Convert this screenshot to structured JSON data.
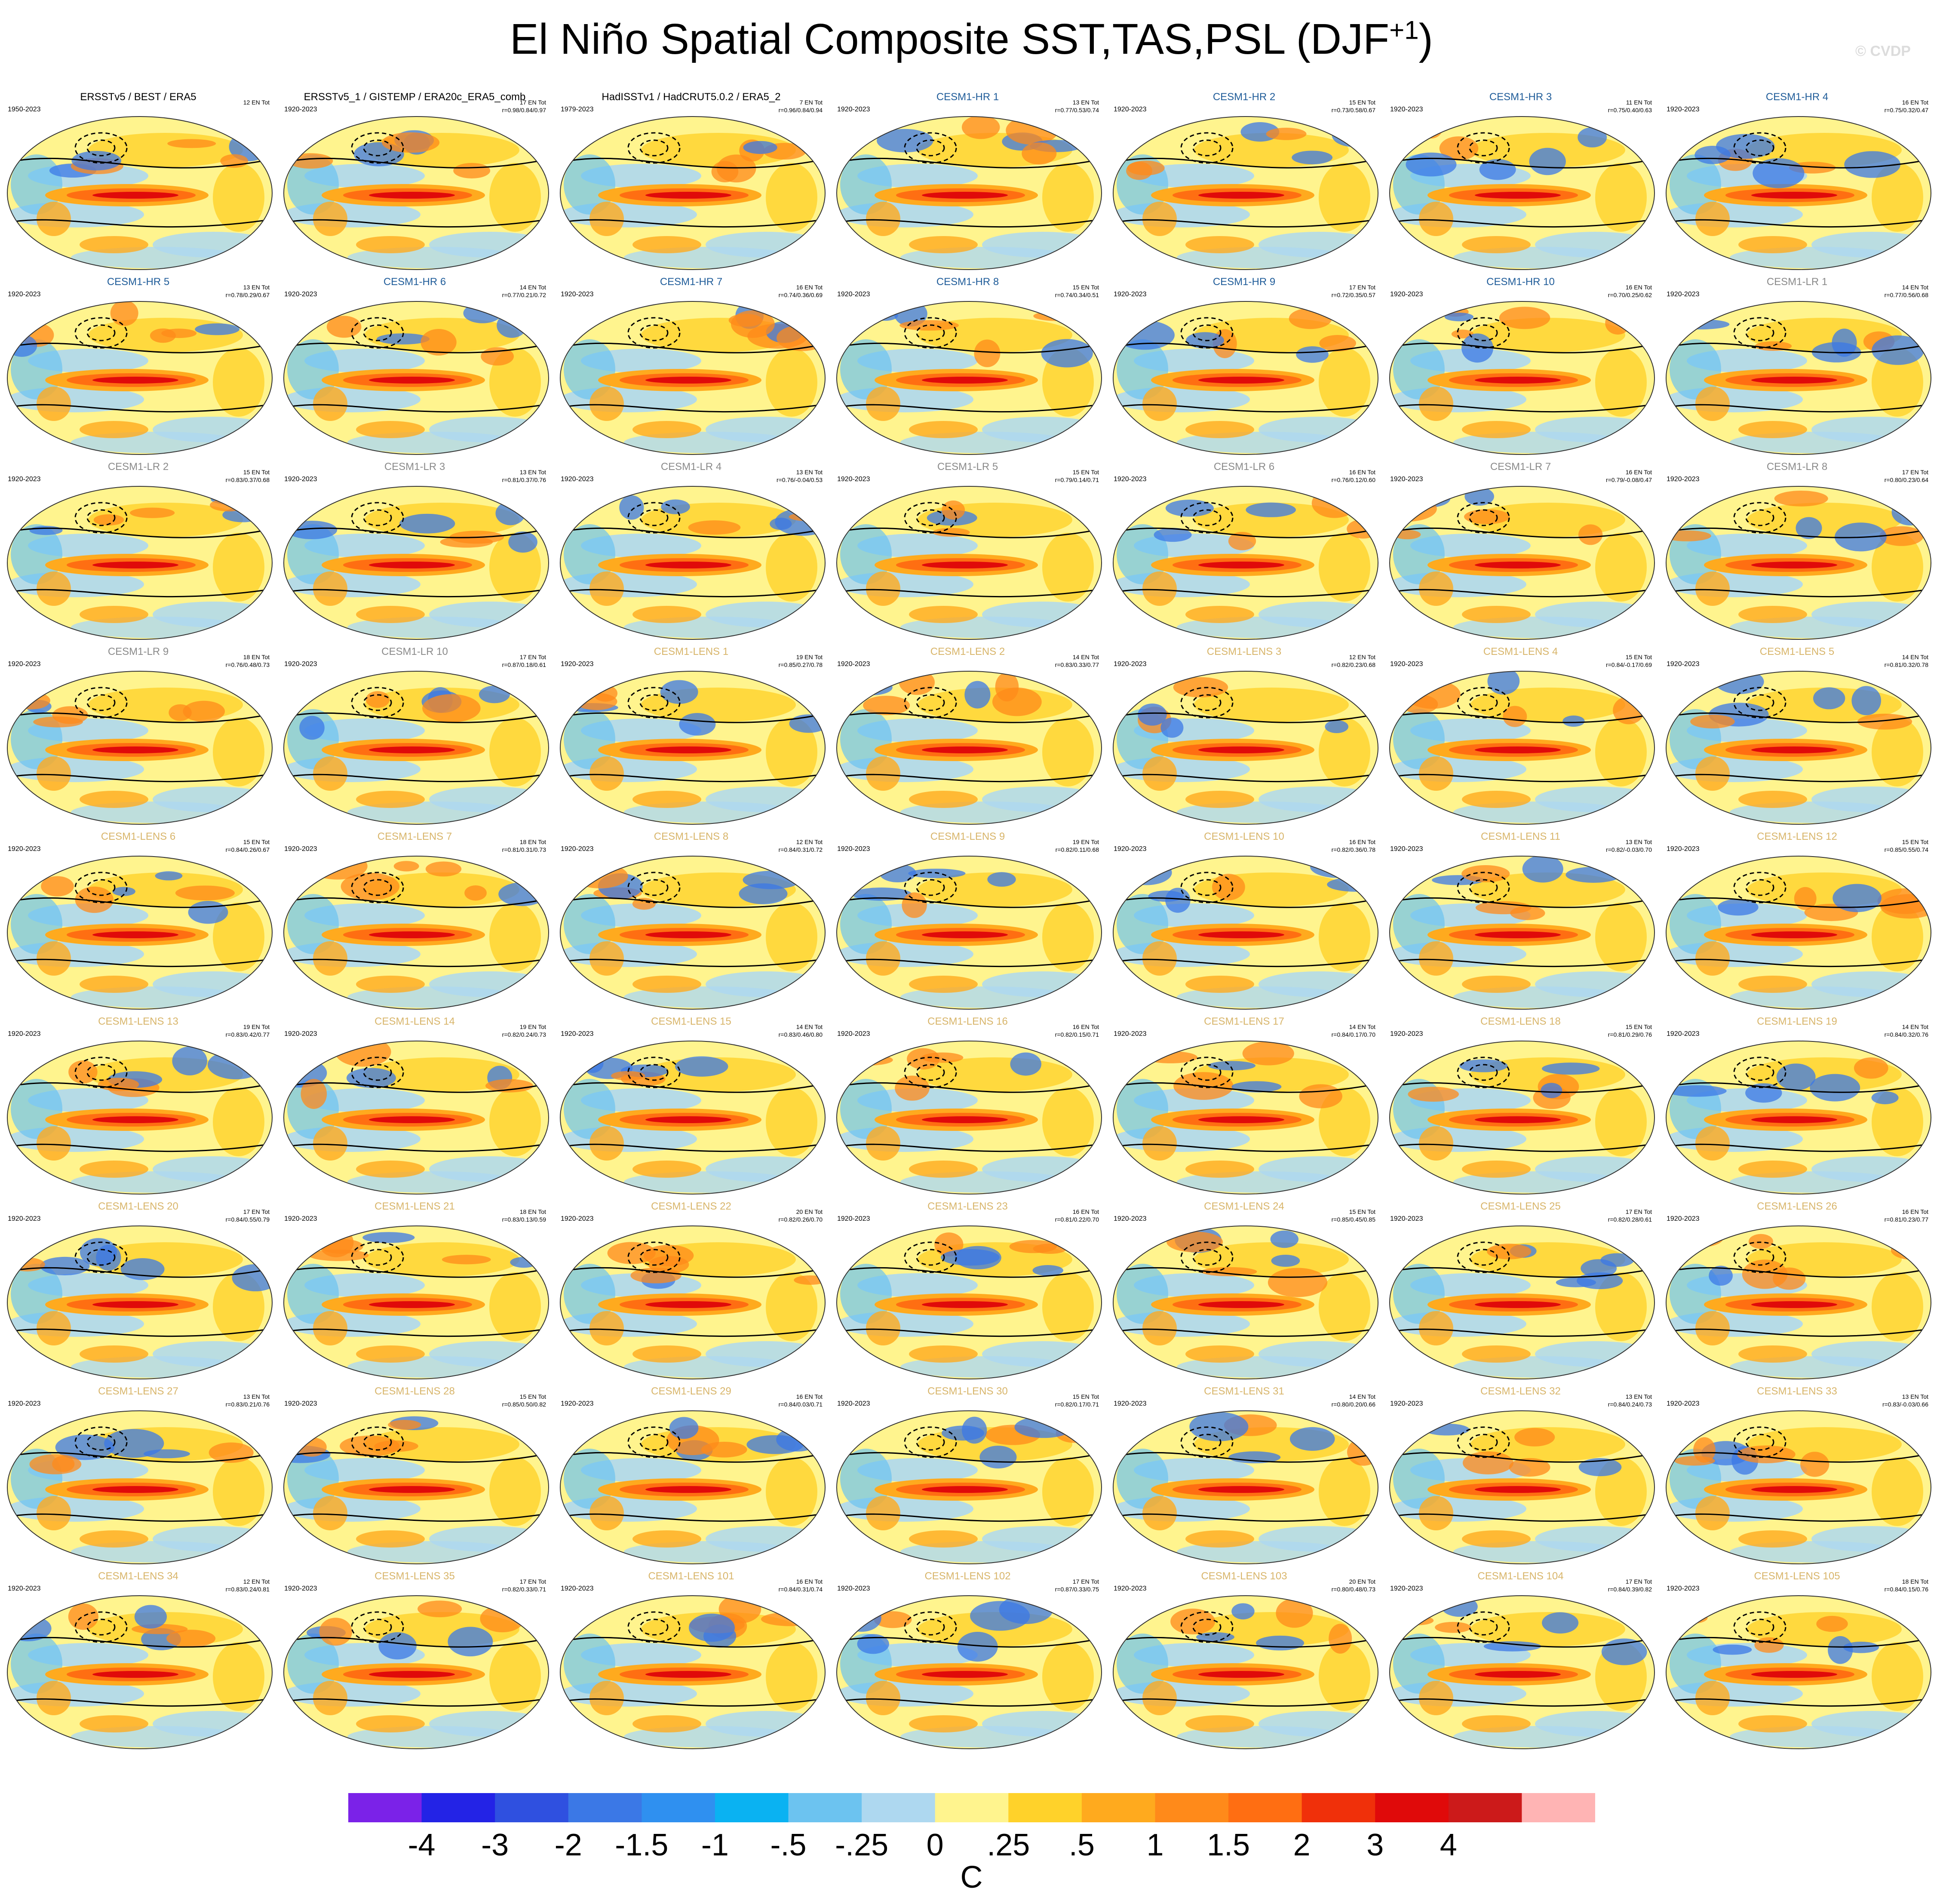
{
  "title": "El Niño Spatial Composite SST,TAS,PSL (DJF",
  "title_sup": "+1",
  "title_close": ")",
  "watermark": "© CVDP",
  "colors": {
    "obs_title": "#000000",
    "hr_title": "#1f5c99",
    "lr_title": "#8a8a8a",
    "lens_title": "#d8b56a"
  },
  "panels": [
    {
      "name": "ERSSTv5 / BEST / ERA5",
      "group": "obs",
      "years": "1950-2023",
      "count": "12 EN Tot",
      "stats": ""
    },
    {
      "name": "ERSSTv5_1 / GISTEMP / ERA20c_ERA5_comb",
      "group": "obs",
      "years": "1920-2023",
      "count": "17 EN Tot",
      "stats": "r=0.98/0.84/0.97"
    },
    {
      "name": "HadISSTv1 / HadCRUT5.0.2 / ERA5_2",
      "group": "obs",
      "years": "1979-2023",
      "count": "7 EN Tot",
      "stats": "r=0.96/0.84/0.94"
    },
    {
      "name": "CESM1-HR 1",
      "group": "hr",
      "years": "1920-2023",
      "count": "13 EN Tot",
      "stats": "r=0.77/0.53/0.74"
    },
    {
      "name": "CESM1-HR 2",
      "group": "hr",
      "years": "1920-2023",
      "count": "15 EN Tot",
      "stats": "r=0.73/0.58/0.67"
    },
    {
      "name": "CESM1-HR 3",
      "group": "hr",
      "years": "1920-2023",
      "count": "11 EN Tot",
      "stats": "r=0.75/0.40/0.63"
    },
    {
      "name": "CESM1-HR 4",
      "group": "hr",
      "years": "1920-2023",
      "count": "16 EN Tot",
      "stats": "r=0.75/0.32/0.47"
    },
    {
      "name": "CESM1-HR 5",
      "group": "hr",
      "years": "1920-2023",
      "count": "13 EN Tot",
      "stats": "r=0.78/0.29/0.67"
    },
    {
      "name": "CESM1-HR 6",
      "group": "hr",
      "years": "1920-2023",
      "count": "14 EN Tot",
      "stats": "r=0.77/0.21/0.72"
    },
    {
      "name": "CESM1-HR 7",
      "group": "hr",
      "years": "1920-2023",
      "count": "16 EN Tot",
      "stats": "r=0.74/0.36/0.69"
    },
    {
      "name": "CESM1-HR 8",
      "group": "hr",
      "years": "1920-2023",
      "count": "15 EN Tot",
      "stats": "r=0.74/0.34/0.51"
    },
    {
      "name": "CESM1-HR 9",
      "group": "hr",
      "years": "1920-2023",
      "count": "17 EN Tot",
      "stats": "r=0.72/0.35/0.57"
    },
    {
      "name": "CESM1-HR 10",
      "group": "hr",
      "years": "1920-2023",
      "count": "16 EN Tot",
      "stats": "r=0.70/0.25/0.62"
    },
    {
      "name": "CESM1-LR 1",
      "group": "lr",
      "years": "1920-2023",
      "count": "14 EN Tot",
      "stats": "r=0.77/0.56/0.68"
    },
    {
      "name": "CESM1-LR 2",
      "group": "lr",
      "years": "1920-2023",
      "count": "15 EN Tot",
      "stats": "r=0.83/0.37/0.68"
    },
    {
      "name": "CESM1-LR 3",
      "group": "lr",
      "years": "1920-2023",
      "count": "13 EN Tot",
      "stats": "r=0.81/0.37/0.76"
    },
    {
      "name": "CESM1-LR 4",
      "group": "lr",
      "years": "1920-2023",
      "count": "13 EN Tot",
      "stats": "r=0.76/-0.04/0.53"
    },
    {
      "name": "CESM1-LR 5",
      "group": "lr",
      "years": "1920-2023",
      "count": "15 EN Tot",
      "stats": "r=0.79/0.14/0.71"
    },
    {
      "name": "CESM1-LR 6",
      "group": "lr",
      "years": "1920-2023",
      "count": "16 EN Tot",
      "stats": "r=0.76/0.12/0.60"
    },
    {
      "name": "CESM1-LR 7",
      "group": "lr",
      "years": "1920-2023",
      "count": "16 EN Tot",
      "stats": "r=0.79/-0.08/0.47"
    },
    {
      "name": "CESM1-LR 8",
      "group": "lr",
      "years": "1920-2023",
      "count": "17 EN Tot",
      "stats": "r=0.80/0.23/0.64"
    },
    {
      "name": "CESM1-LR 9",
      "group": "lr",
      "years": "1920-2023",
      "count": "18 EN Tot",
      "stats": "r=0.76/0.48/0.73"
    },
    {
      "name": "CESM1-LR 10",
      "group": "lr",
      "years": "1920-2023",
      "count": "17 EN Tot",
      "stats": "r=0.87/0.18/0.61"
    },
    {
      "name": "CESM1-LENS 1",
      "group": "lens",
      "years": "1920-2023",
      "count": "19 EN Tot",
      "stats": "r=0.85/0.27/0.78"
    },
    {
      "name": "CESM1-LENS 2",
      "group": "lens",
      "years": "1920-2023",
      "count": "14 EN Tot",
      "stats": "r=0.83/0.33/0.77"
    },
    {
      "name": "CESM1-LENS 3",
      "group": "lens",
      "years": "1920-2023",
      "count": "12 EN Tot",
      "stats": "r=0.82/0.23/0.68"
    },
    {
      "name": "CESM1-LENS 4",
      "group": "lens",
      "years": "1920-2023",
      "count": "15 EN Tot",
      "stats": "r=0.84/-0.17/0.69"
    },
    {
      "name": "CESM1-LENS 5",
      "group": "lens",
      "years": "1920-2023",
      "count": "14 EN Tot",
      "stats": "r=0.81/0.32/0.78"
    },
    {
      "name": "CESM1-LENS 6",
      "group": "lens",
      "years": "1920-2023",
      "count": "15 EN Tot",
      "stats": "r=0.84/0.26/0.67"
    },
    {
      "name": "CESM1-LENS 7",
      "group": "lens",
      "years": "1920-2023",
      "count": "18 EN Tot",
      "stats": "r=0.81/0.31/0.73"
    },
    {
      "name": "CESM1-LENS 8",
      "group": "lens",
      "years": "1920-2023",
      "count": "12 EN Tot",
      "stats": "r=0.84/0.31/0.72"
    },
    {
      "name": "CESM1-LENS 9",
      "group": "lens",
      "years": "1920-2023",
      "count": "19 EN Tot",
      "stats": "r=0.82/0.11/0.68"
    },
    {
      "name": "CESM1-LENS 10",
      "group": "lens",
      "years": "1920-2023",
      "count": "16 EN Tot",
      "stats": "r=0.82/0.36/0.78"
    },
    {
      "name": "CESM1-LENS 11",
      "group": "lens",
      "years": "1920-2023",
      "count": "13 EN Tot",
      "stats": "r=0.82/-0.03/0.70"
    },
    {
      "name": "CESM1-LENS 12",
      "group": "lens",
      "years": "1920-2023",
      "count": "15 EN Tot",
      "stats": "r=0.85/0.55/0.74"
    },
    {
      "name": "CESM1-LENS 13",
      "group": "lens",
      "years": "1920-2023",
      "count": "19 EN Tot",
      "stats": "r=0.83/0.42/0.77"
    },
    {
      "name": "CESM1-LENS 14",
      "group": "lens",
      "years": "1920-2023",
      "count": "19 EN Tot",
      "stats": "r=0.82/0.24/0.73"
    },
    {
      "name": "CESM1-LENS 15",
      "group": "lens",
      "years": "1920-2023",
      "count": "14 EN Tot",
      "stats": "r=0.83/0.46/0.80"
    },
    {
      "name": "CESM1-LENS 16",
      "group": "lens",
      "years": "1920-2023",
      "count": "16 EN Tot",
      "stats": "r=0.82/0.15/0.71"
    },
    {
      "name": "CESM1-LENS 17",
      "group": "lens",
      "years": "1920-2023",
      "count": "14 EN Tot",
      "stats": "r=0.84/0.17/0.70"
    },
    {
      "name": "CESM1-LENS 18",
      "group": "lens",
      "years": "1920-2023",
      "count": "15 EN Tot",
      "stats": "r=0.81/0.29/0.76"
    },
    {
      "name": "CESM1-LENS 19",
      "group": "lens",
      "years": "1920-2023",
      "count": "14 EN Tot",
      "stats": "r=0.84/0.32/0.76"
    },
    {
      "name": "CESM1-LENS 20",
      "group": "lens",
      "years": "1920-2023",
      "count": "17 EN Tot",
      "stats": "r=0.84/0.55/0.79"
    },
    {
      "name": "CESM1-LENS 21",
      "group": "lens",
      "years": "1920-2023",
      "count": "18 EN Tot",
      "stats": "r=0.83/0.13/0.59"
    },
    {
      "name": "CESM1-LENS 22",
      "group": "lens",
      "years": "1920-2023",
      "count": "20 EN Tot",
      "stats": "r=0.82/0.26/0.70"
    },
    {
      "name": "CESM1-LENS 23",
      "group": "lens",
      "years": "1920-2023",
      "count": "16 EN Tot",
      "stats": "r=0.81/0.22/0.70"
    },
    {
      "name": "CESM1-LENS 24",
      "group": "lens",
      "years": "1920-2023",
      "count": "15 EN Tot",
      "stats": "r=0.85/0.45/0.85"
    },
    {
      "name": "CESM1-LENS 25",
      "group": "lens",
      "years": "1920-2023",
      "count": "17 EN Tot",
      "stats": "r=0.82/0.28/0.61"
    },
    {
      "name": "CESM1-LENS 26",
      "group": "lens",
      "years": "1920-2023",
      "count": "16 EN Tot",
      "stats": "r=0.81/0.23/0.77"
    },
    {
      "name": "CESM1-LENS 27",
      "group": "lens",
      "years": "1920-2023",
      "count": "13 EN Tot",
      "stats": "r=0.83/0.21/0.76"
    },
    {
      "name": "CESM1-LENS 28",
      "group": "lens",
      "years": "1920-2023",
      "count": "15 EN Tot",
      "stats": "r=0.85/0.50/0.82"
    },
    {
      "name": "CESM1-LENS 29",
      "group": "lens",
      "years": "1920-2023",
      "count": "16 EN Tot",
      "stats": "r=0.84/0.03/0.71"
    },
    {
      "name": "CESM1-LENS 30",
      "group": "lens",
      "years": "1920-2023",
      "count": "15 EN Tot",
      "stats": "r=0.82/0.17/0.71"
    },
    {
      "name": "CESM1-LENS 31",
      "group": "lens",
      "years": "1920-2023",
      "count": "14 EN Tot",
      "stats": "r=0.80/0.20/0.66"
    },
    {
      "name": "CESM1-LENS 32",
      "group": "lens",
      "years": "1920-2023",
      "count": "13 EN Tot",
      "stats": "r=0.84/0.24/0.73"
    },
    {
      "name": "CESM1-LENS 33",
      "group": "lens",
      "years": "1920-2023",
      "count": "13 EN Tot",
      "stats": "r=0.83/-0.03/0.66"
    },
    {
      "name": "CESM1-LENS 34",
      "group": "lens",
      "years": "1920-2023",
      "count": "12 EN Tot",
      "stats": "r=0.83/0.24/0.81"
    },
    {
      "name": "CESM1-LENS 35",
      "group": "lens",
      "years": "1920-2023",
      "count": "17 EN Tot",
      "stats": "r=0.82/0.33/0.71"
    },
    {
      "name": "CESM1-LENS 101",
      "group": "lens",
      "years": "1920-2023",
      "count": "16 EN Tot",
      "stats": "r=0.84/0.31/0.74"
    },
    {
      "name": "CESM1-LENS 102",
      "group": "lens",
      "years": "1920-2023",
      "count": "17 EN Tot",
      "stats": "r=0.87/0.33/0.75"
    },
    {
      "name": "CESM1-LENS 103",
      "group": "lens",
      "years": "1920-2023",
      "count": "20 EN Tot",
      "stats": "r=0.80/0.48/0.73"
    },
    {
      "name": "CESM1-LENS 104",
      "group": "lens",
      "years": "1920-2023",
      "count": "17 EN Tot",
      "stats": "r=0.84/0.39/0.82"
    },
    {
      "name": "CESM1-LENS 105",
      "group": "lens",
      "years": "1920-2023",
      "count": "18 EN Tot",
      "stats": "r=0.84/0.15/0.76"
    }
  ],
  "colorbar": {
    "colors": [
      "#7b22e8",
      "#2323e6",
      "#2f50e0",
      "#3b78e6",
      "#2f90f0",
      "#0ab2f2",
      "#6cc3f0",
      "#aed8f0",
      "#fff48e",
      "#ffd22a",
      "#ffaa1e",
      "#ff8a1a",
      "#ff6e12",
      "#f0300a",
      "#e00a0a",
      "#cc1a1a",
      "#ffb4b4"
    ],
    "labels": [
      "-4",
      "-3",
      "-2",
      "-1.5",
      "-1",
      "-.5",
      "-.25",
      "0",
      ".25",
      ".5",
      "1",
      "1.5",
      "2",
      "3",
      "4"
    ],
    "units": "C"
  }
}
